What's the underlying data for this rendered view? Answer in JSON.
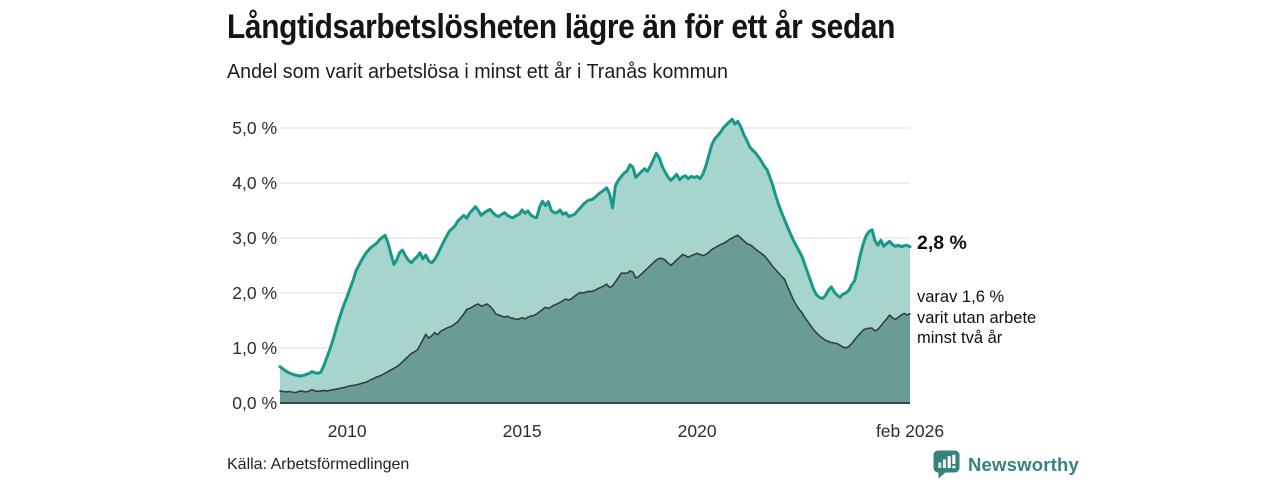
{
  "header": {
    "title": "Långtidsarbetslösheten lägre än för ett år sedan",
    "subtitle": "Andel som varit arbetslösa i minst ett år i Tranås kommun"
  },
  "annotation": {
    "value_label": "2,8 %",
    "detail_lines": [
      "varav 1,6 %",
      "varit utan arbete",
      "minst två år"
    ]
  },
  "footer": {
    "source": "Källa: Arbetsförmedlingen",
    "brand": "Newsworthy"
  },
  "colors": {
    "accent_teal": "#17988a",
    "light_fill": "#a7d5ce",
    "dark_fill": "#699c96",
    "dark_line": "#333f3d",
    "gridline": "#dcdce2",
    "axis_line": "#3a4643",
    "tick_text": "#2d2d2d",
    "brand_teal": "#35837d"
  },
  "chart_data": {
    "type": "area",
    "title": "Långtidsarbetslösheten lägre än för ett år sedan",
    "subtitle": "Andel som varit arbetslösa i minst ett år i Tranås kommun",
    "unit": "%",
    "freq": "monthly",
    "start": "2008-02",
    "end": "2026-02",
    "x_domain": [
      2008.083,
      2026.083
    ],
    "ylim": [
      0,
      5.4
    ],
    "grid": true,
    "y_ticks": [
      {
        "label": "0,0 %",
        "value": 0
      },
      {
        "label": "1,0 %",
        "value": 1
      },
      {
        "label": "2,0 %",
        "value": 2
      },
      {
        "label": "3,0 %",
        "value": 3
      },
      {
        "label": "4,0 %",
        "value": 4
      },
      {
        "label": "5,0 %",
        "value": 5
      }
    ],
    "x_ticks": [
      {
        "label": "2010",
        "value": 2010.0
      },
      {
        "label": "2015",
        "value": 2015.0
      },
      {
        "label": "2020",
        "value": 2020.0
      },
      {
        "label": "feb 2026",
        "value": 2026.083
      }
    ],
    "series": [
      {
        "name": "arbetslösa minst ett år (totalt)",
        "end_label": "2,8 %",
        "line_color": "#17988a",
        "fill_color": "#a7d5ce",
        "line_width": 3,
        "values": [
          0.66,
          0.62,
          0.58,
          0.55,
          0.53,
          0.51,
          0.5,
          0.49,
          0.5,
          0.52,
          0.54,
          0.57,
          0.55,
          0.54,
          0.56,
          0.68,
          0.82,
          0.96,
          1.12,
          1.3,
          1.48,
          1.65,
          1.8,
          1.93,
          2.08,
          2.22,
          2.39,
          2.5,
          2.6,
          2.69,
          2.76,
          2.82,
          2.86,
          2.9,
          2.96,
          3.01,
          3.05,
          2.92,
          2.72,
          2.52,
          2.6,
          2.73,
          2.78,
          2.68,
          2.6,
          2.55,
          2.61,
          2.66,
          2.73,
          2.62,
          2.69,
          2.58,
          2.55,
          2.61,
          2.7,
          2.81,
          2.92,
          3.02,
          3.12,
          3.17,
          3.22,
          3.31,
          3.36,
          3.41,
          3.36,
          3.45,
          3.51,
          3.57,
          3.5,
          3.41,
          3.46,
          3.49,
          3.52,
          3.46,
          3.41,
          3.39,
          3.43,
          3.46,
          3.41,
          3.38,
          3.37,
          3.41,
          3.43,
          3.51,
          3.45,
          3.49,
          3.42,
          3.38,
          3.37,
          3.56,
          3.67,
          3.59,
          3.66,
          3.5,
          3.46,
          3.46,
          3.51,
          3.43,
          3.46,
          3.39,
          3.41,
          3.43,
          3.49,
          3.55,
          3.61,
          3.66,
          3.69,
          3.7,
          3.74,
          3.79,
          3.83,
          3.87,
          3.91,
          3.8,
          3.55,
          3.95,
          4.05,
          4.12,
          4.18,
          4.22,
          4.33,
          4.29,
          4.1,
          4.16,
          4.21,
          4.26,
          4.21,
          4.31,
          4.42,
          4.54,
          4.46,
          4.31,
          4.2,
          4.11,
          4.05,
          4.1,
          4.16,
          4.06,
          4.11,
          4.13,
          4.08,
          4.12,
          4.1,
          4.12,
          4.08,
          4.16,
          4.31,
          4.5,
          4.69,
          4.8,
          4.86,
          4.92,
          5.0,
          5.06,
          5.11,
          5.16,
          5.07,
          5.12,
          5.02,
          4.88,
          4.78,
          4.66,
          4.6,
          4.55,
          4.48,
          4.4,
          4.31,
          4.24,
          4.1,
          3.95,
          3.76,
          3.6,
          3.46,
          3.33,
          3.2,
          3.08,
          2.96,
          2.86,
          2.76,
          2.66,
          2.51,
          2.36,
          2.21,
          2.06,
          1.96,
          1.92,
          1.9,
          1.95,
          2.05,
          2.11,
          2.02,
          1.96,
          1.92,
          1.98,
          2.0,
          2.05,
          2.15,
          2.22,
          2.45,
          2.7,
          2.9,
          3.05,
          3.12,
          3.15,
          2.95,
          2.87,
          2.96,
          2.85,
          2.9,
          2.94,
          2.88,
          2.85,
          2.87,
          2.84,
          2.86,
          2.87,
          2.84
        ]
      },
      {
        "name": "varav utan arbete minst två år",
        "end_label": "varav 1,6 %",
        "line_color": "#333f3d",
        "fill_color": "#699c96",
        "line_width": 1.6,
        "values": [
          0.22,
          0.21,
          0.2,
          0.21,
          0.2,
          0.19,
          0.2,
          0.22,
          0.21,
          0.2,
          0.22,
          0.24,
          0.22,
          0.21,
          0.22,
          0.23,
          0.22,
          0.23,
          0.24,
          0.25,
          0.26,
          0.27,
          0.28,
          0.3,
          0.31,
          0.32,
          0.33,
          0.34,
          0.36,
          0.37,
          0.39,
          0.42,
          0.44,
          0.47,
          0.49,
          0.51,
          0.54,
          0.57,
          0.6,
          0.63,
          0.66,
          0.7,
          0.75,
          0.8,
          0.85,
          0.9,
          0.93,
          0.96,
          1.05,
          1.15,
          1.25,
          1.18,
          1.22,
          1.28,
          1.24,
          1.3,
          1.33,
          1.36,
          1.38,
          1.4,
          1.44,
          1.48,
          1.55,
          1.62,
          1.7,
          1.72,
          1.75,
          1.78,
          1.8,
          1.76,
          1.78,
          1.8,
          1.76,
          1.7,
          1.62,
          1.6,
          1.58,
          1.56,
          1.58,
          1.55,
          1.54,
          1.52,
          1.53,
          1.55,
          1.53,
          1.56,
          1.58,
          1.59,
          1.62,
          1.66,
          1.7,
          1.74,
          1.72,
          1.75,
          1.78,
          1.8,
          1.83,
          1.86,
          1.89,
          1.87,
          1.9,
          1.94,
          1.98,
          2.01,
          2.0,
          2.02,
          2.03,
          2.03,
          2.05,
          2.08,
          2.1,
          2.13,
          2.16,
          2.1,
          2.13,
          2.2,
          2.28,
          2.36,
          2.36,
          2.36,
          2.4,
          2.38,
          2.27,
          2.3,
          2.35,
          2.4,
          2.45,
          2.5,
          2.55,
          2.6,
          2.63,
          2.63,
          2.6,
          2.55,
          2.5,
          2.55,
          2.6,
          2.65,
          2.7,
          2.68,
          2.65,
          2.68,
          2.7,
          2.72,
          2.7,
          2.68,
          2.7,
          2.74,
          2.79,
          2.82,
          2.85,
          2.88,
          2.9,
          2.93,
          2.97,
          3.0,
          3.03,
          3.05,
          3.0,
          2.95,
          2.9,
          2.88,
          2.85,
          2.8,
          2.76,
          2.72,
          2.68,
          2.62,
          2.55,
          2.48,
          2.42,
          2.36,
          2.3,
          2.25,
          2.12,
          2.0,
          1.88,
          1.78,
          1.7,
          1.64,
          1.55,
          1.48,
          1.4,
          1.33,
          1.27,
          1.22,
          1.18,
          1.14,
          1.12,
          1.1,
          1.09,
          1.08,
          1.05,
          1.02,
          1.0,
          1.03,
          1.08,
          1.15,
          1.21,
          1.27,
          1.33,
          1.35,
          1.36,
          1.36,
          1.31,
          1.34,
          1.4,
          1.47,
          1.53,
          1.6,
          1.55,
          1.52,
          1.56,
          1.6,
          1.63,
          1.6,
          1.62
        ]
      }
    ]
  }
}
